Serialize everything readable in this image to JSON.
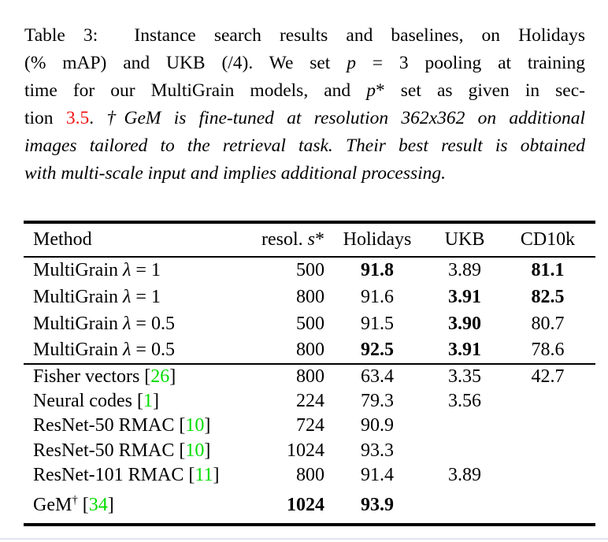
{
  "colors": {
    "ref_red": "#f01212",
    "cite_green": "#00dd00",
    "rule_black": "#000000",
    "page_edge_gray": "#dfe4ee"
  },
  "caption": {
    "lines": [
      {
        "segments": [
          {
            "text": "Table 3:  Instance search results and baselines, on Holidays"
          }
        ]
      },
      {
        "segments": [
          {
            "text": "(% mAP) and UKB (/4). We set "
          },
          {
            "text": "p"
          },
          {
            "text": " = 3 pooling at training"
          }
        ]
      },
      {
        "segments": [
          {
            "text": "time for our MultiGrain models, and "
          },
          {
            "text": "p"
          },
          {
            "text": "*"
          },
          {
            "text": " set as given in sec-"
          }
        ]
      },
      {
        "segments": [
          {
            "text": "tion "
          },
          {
            "text": "3.5"
          },
          {
            "text": ". "
          },
          {
            "text": "†GeM is fine-tuned at resolution 362x362 on additional"
          }
        ]
      },
      {
        "segments": [
          {
            "text": "images tailored to the retrieval task. Their best result is obtained"
          }
        ]
      },
      {
        "segments": [
          {
            "text": "with multi-scale input and implies additional processing."
          }
        ]
      }
    ]
  },
  "table": {
    "header": {
      "method": "Method",
      "resol_prefix": "resol. ",
      "resol_var": "s",
      "resol_star": "*",
      "holidays": "Holidays",
      "ukb": "UKB",
      "cd10k": "CD10k"
    },
    "rows": [
      {
        "group": 1,
        "method": [
          {
            "t": "MultiGrain ",
            "s": "r"
          },
          {
            "t": "λ",
            "s": "i"
          },
          {
            "t": " = 1",
            "s": "r"
          }
        ],
        "resol": {
          "v": "500"
        },
        "holidays": {
          "v": "91.8",
          "b": true
        },
        "ukb": {
          "v": "3.89"
        },
        "cd10k": {
          "v": "81.1",
          "b": true
        }
      },
      {
        "group": 1,
        "method": [
          {
            "t": "MultiGrain ",
            "s": "r"
          },
          {
            "t": "λ",
            "s": "i"
          },
          {
            "t": " = 1",
            "s": "r"
          }
        ],
        "resol": {
          "v": "800"
        },
        "holidays": {
          "v": "91.6"
        },
        "ukb": {
          "v": "3.91",
          "b": true
        },
        "cd10k": {
          "v": "82.5",
          "b": true
        }
      },
      {
        "group": 1,
        "method": [
          {
            "t": "MultiGrain ",
            "s": "r"
          },
          {
            "t": "λ",
            "s": "i"
          },
          {
            "t": " = 0.5",
            "s": "r"
          }
        ],
        "resol": {
          "v": "500"
        },
        "holidays": {
          "v": "91.5"
        },
        "ukb": {
          "v": "3.90",
          "b": true
        },
        "cd10k": {
          "v": "80.7"
        }
      },
      {
        "group": 1,
        "method": [
          {
            "t": "MultiGrain ",
            "s": "r"
          },
          {
            "t": "λ",
            "s": "i"
          },
          {
            "t": " = 0.5",
            "s": "r"
          }
        ],
        "resol": {
          "v": "800"
        },
        "holidays": {
          "v": "92.5",
          "b": true
        },
        "ukb": {
          "v": "3.91",
          "b": true
        },
        "cd10k": {
          "v": "78.6"
        }
      },
      {
        "group": 2,
        "method": [
          {
            "t": "Fisher vectors [",
            "s": "r"
          },
          {
            "t": "26",
            "s": "g"
          },
          {
            "t": "]",
            "s": "r"
          }
        ],
        "resol": {
          "v": "800"
        },
        "holidays": {
          "v": "63.4"
        },
        "ukb": {
          "v": "3.35"
        },
        "cd10k": {
          "v": "42.7"
        }
      },
      {
        "group": 2,
        "method": [
          {
            "t": "Neural codes [",
            "s": "r"
          },
          {
            "t": "1",
            "s": "g"
          },
          {
            "t": "]",
            "s": "r"
          }
        ],
        "resol": {
          "v": "224"
        },
        "holidays": {
          "v": "79.3"
        },
        "ukb": {
          "v": "3.56"
        },
        "cd10k": {
          "v": ""
        }
      },
      {
        "group": 2,
        "method": [
          {
            "t": "ResNet-50 RMAC [",
            "s": "r"
          },
          {
            "t": "10",
            "s": "g"
          },
          {
            "t": "]",
            "s": "r"
          }
        ],
        "resol": {
          "v": "724"
        },
        "holidays": {
          "v": "90.9"
        },
        "ukb": {
          "v": ""
        },
        "cd10k": {
          "v": ""
        }
      },
      {
        "group": 2,
        "method": [
          {
            "t": "ResNet-50 RMAC [",
            "s": "r"
          },
          {
            "t": "10",
            "s": "g"
          },
          {
            "t": "]",
            "s": "r"
          }
        ],
        "resol": {
          "v": "1024"
        },
        "holidays": {
          "v": "93.3"
        },
        "ukb": {
          "v": ""
        },
        "cd10k": {
          "v": ""
        }
      },
      {
        "group": 2,
        "method": [
          {
            "t": "ResNet-101 RMAC [",
            "s": "r"
          },
          {
            "t": "11",
            "s": "g"
          },
          {
            "t": "]",
            "s": "r"
          }
        ],
        "resol": {
          "v": "800"
        },
        "holidays": {
          "v": "91.4"
        },
        "ukb": {
          "v": "3.89"
        },
        "cd10k": {
          "v": ""
        }
      },
      {
        "group": 2,
        "method": [
          {
            "t": "GeM",
            "s": "r"
          },
          {
            "t": "†",
            "s": "sup"
          },
          {
            "t": " [",
            "s": "r"
          },
          {
            "t": "34",
            "s": "g"
          },
          {
            "t": "]",
            "s": "r"
          }
        ],
        "resol": {
          "v": "1024",
          "b": true
        },
        "holidays": {
          "v": "93.9",
          "b": true
        },
        "ukb": {
          "v": ""
        },
        "cd10k": {
          "v": ""
        }
      }
    ]
  }
}
